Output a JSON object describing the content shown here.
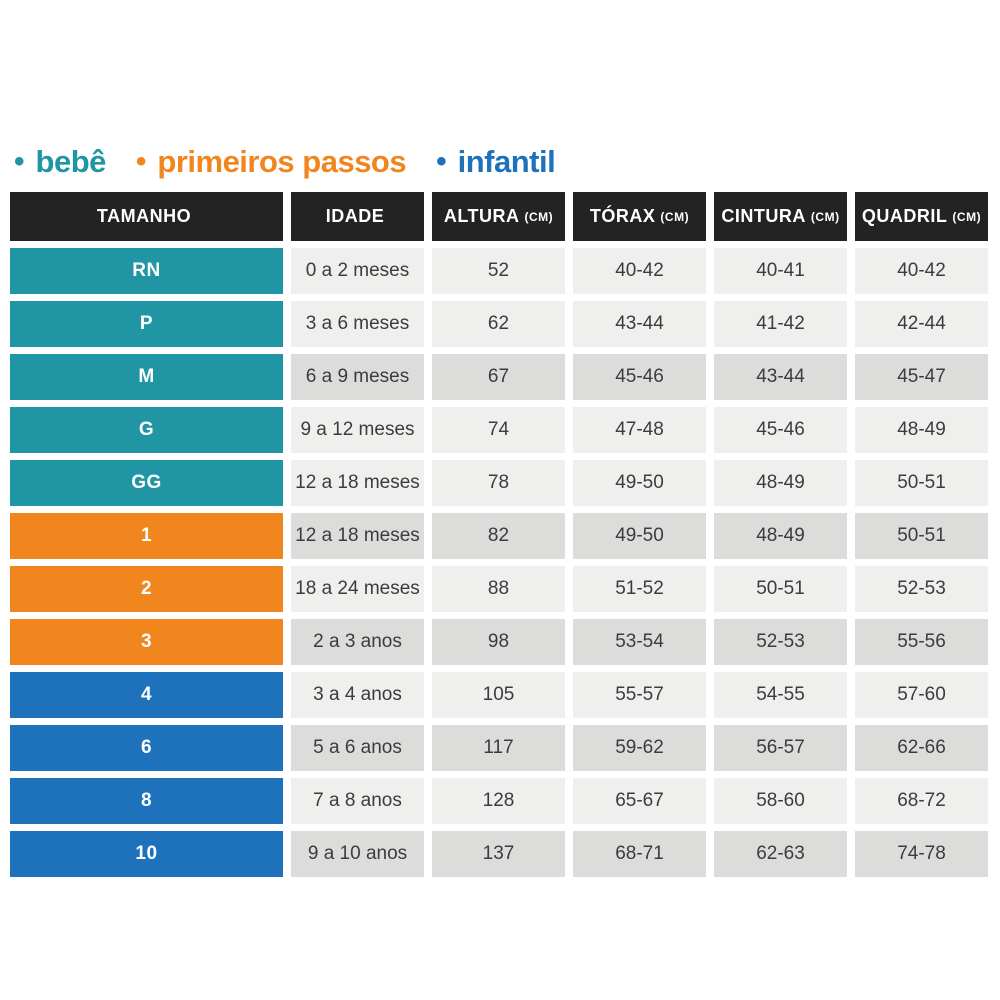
{
  "colors": {
    "teal": "#2096A5",
    "orange": "#F0861D",
    "blue": "#1E72BC",
    "header_bg": "#232323",
    "cell_light": "#EFEFEE",
    "cell_dark": "#DCDCDB",
    "cell_text": "#3C3C3C",
    "page_bg": "#FFFFFF"
  },
  "legend": {
    "bullet": "•",
    "items": [
      {
        "label": "bebê",
        "color": "#2096A5"
      },
      {
        "label": "primeiros passos",
        "color": "#F0861D"
      },
      {
        "label": "infantil",
        "color": "#1E72BC"
      }
    ]
  },
  "table": {
    "headers": [
      {
        "label": "TAMANHO",
        "unit": ""
      },
      {
        "label": "IDADE",
        "unit": ""
      },
      {
        "label": "ALTURA",
        "unit": "(CM)"
      },
      {
        "label": "TÓRAX",
        "unit": "(CM)"
      },
      {
        "label": "CINTURA",
        "unit": "(CM)"
      },
      {
        "label": "QUADRIL",
        "unit": "(CM)"
      }
    ],
    "rows": [
      {
        "size": "RN",
        "group": "bebê",
        "idade": "0 a 2 meses",
        "altura": "52",
        "torax": "40-42",
        "cintura": "40-41",
        "quadril": "40-42",
        "shaded": false
      },
      {
        "size": "P",
        "group": "bebê",
        "idade": "3 a 6 meses",
        "altura": "62",
        "torax": "43-44",
        "cintura": "41-42",
        "quadril": "42-44",
        "shaded": false
      },
      {
        "size": "M",
        "group": "bebê",
        "idade": "6 a 9 meses",
        "altura": "67",
        "torax": "45-46",
        "cintura": "43-44",
        "quadril": "45-47",
        "shaded": true
      },
      {
        "size": "G",
        "group": "bebê",
        "idade": "9 a 12 meses",
        "altura": "74",
        "torax": "47-48",
        "cintura": "45-46",
        "quadril": "48-49",
        "shaded": false
      },
      {
        "size": "GG",
        "group": "bebê",
        "idade": "12 a 18 meses",
        "altura": "78",
        "torax": "49-50",
        "cintura": "48-49",
        "quadril": "50-51",
        "shaded": false
      },
      {
        "size": "1",
        "group": "primeiros passos",
        "idade": "12 a 18 meses",
        "altura": "82",
        "torax": "49-50",
        "cintura": "48-49",
        "quadril": "50-51",
        "shaded": true
      },
      {
        "size": "2",
        "group": "primeiros passos",
        "idade": "18 a 24 meses",
        "altura": "88",
        "torax": "51-52",
        "cintura": "50-51",
        "quadril": "52-53",
        "shaded": false
      },
      {
        "size": "3",
        "group": "primeiros passos",
        "idade": "2 a 3 anos",
        "altura": "98",
        "torax": "53-54",
        "cintura": "52-53",
        "quadril": "55-56",
        "shaded": true
      },
      {
        "size": "4",
        "group": "infantil",
        "idade": "3 a 4 anos",
        "altura": "105",
        "torax": "55-57",
        "cintura": "54-55",
        "quadril": "57-60",
        "shaded": false
      },
      {
        "size": "6",
        "group": "infantil",
        "idade": "5 a 6 anos",
        "altura": "117",
        "torax": "59-62",
        "cintura": "56-57",
        "quadril": "62-66",
        "shaded": true
      },
      {
        "size": "8",
        "group": "infantil",
        "idade": "7 a 8 anos",
        "altura": "128",
        "torax": "65-67",
        "cintura": "58-60",
        "quadril": "68-72",
        "shaded": false
      },
      {
        "size": "10",
        "group": "infantil",
        "idade": "9 a 10 anos",
        "altura": "137",
        "torax": "68-71",
        "cintura": "62-63",
        "quadril": "74-78",
        "shaded": true
      }
    ]
  },
  "chart_data": {
    "type": "table",
    "title": "",
    "legend": [
      "bebê",
      "primeiros passos",
      "infantil"
    ],
    "legend_position": "top",
    "columns": [
      "TAMANHO",
      "IDADE",
      "ALTURA (CM)",
      "TÓRAX (CM)",
      "CINTURA (CM)",
      "QUADRIL (CM)"
    ],
    "rows": [
      [
        "RN",
        "0 a 2 meses",
        "52",
        "40-42",
        "40-41",
        "40-42"
      ],
      [
        "P",
        "3 a 6 meses",
        "62",
        "43-44",
        "41-42",
        "42-44"
      ],
      [
        "M",
        "6 a 9 meses",
        "67",
        "45-46",
        "43-44",
        "45-47"
      ],
      [
        "G",
        "9 a 12 meses",
        "74",
        "47-48",
        "45-46",
        "48-49"
      ],
      [
        "GG",
        "12 a 18 meses",
        "78",
        "49-50",
        "48-49",
        "50-51"
      ],
      [
        "1",
        "12 a 18 meses",
        "82",
        "49-50",
        "48-49",
        "50-51"
      ],
      [
        "2",
        "18 a 24 meses",
        "88",
        "51-52",
        "50-51",
        "52-53"
      ],
      [
        "3",
        "2 a 3 anos",
        "98",
        "53-54",
        "52-53",
        "55-56"
      ],
      [
        "4",
        "3 a 4 anos",
        "105",
        "55-57",
        "54-55",
        "57-60"
      ],
      [
        "6",
        "5 a 6 anos",
        "117",
        "59-62",
        "56-57",
        "62-66"
      ],
      [
        "8",
        "7 a 8 anos",
        "128",
        "65-67",
        "58-60",
        "68-72"
      ],
      [
        "10",
        "9 a 10 anos",
        "137",
        "68-71",
        "62-63",
        "74-78"
      ]
    ],
    "row_groups": {
      "bebê": [
        "RN",
        "P",
        "M",
        "G",
        "GG"
      ],
      "primeiros passos": [
        "1",
        "2",
        "3"
      ],
      "infantil": [
        "4",
        "6",
        "8",
        "10"
      ]
    }
  }
}
